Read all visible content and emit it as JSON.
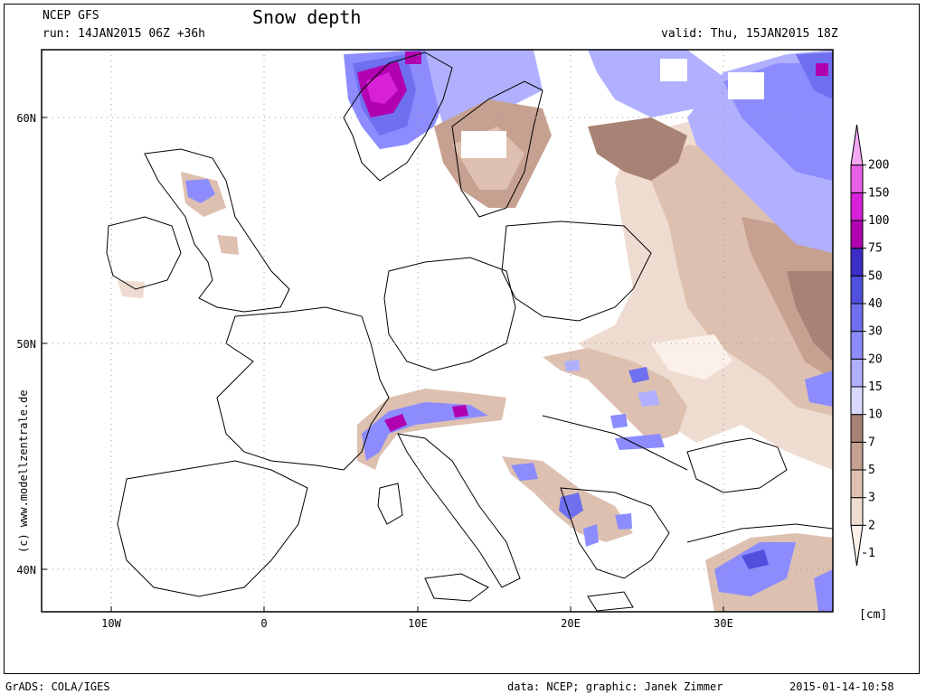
{
  "header": {
    "model": "NCEP GFS",
    "title": "Snow depth",
    "run": "run: 14JAN2015 06Z +36h",
    "valid": "valid: Thu, 15JAN2015 18Z"
  },
  "axes": {
    "lat_labels": [
      "60N",
      "50N",
      "40N"
    ],
    "lon_labels": [
      "10W",
      "0",
      "10E",
      "20E",
      "30E"
    ]
  },
  "colorbar": {
    "levels": [
      "1",
      "2",
      "3",
      "5",
      "7",
      "10",
      "15",
      "20",
      "30",
      "40",
      "50",
      "75",
      "100",
      "150",
      "200"
    ],
    "colors": [
      "#fbf1ea",
      "#efdcd0",
      "#ddc0b0",
      "#c6a090",
      "#a88274",
      "#d8d8ff",
      "#b0b0ff",
      "#8c8cff",
      "#6f6ff0",
      "#5050dc",
      "#3c2cc8",
      "#b000b0",
      "#d820d8",
      "#e860e8",
      "#f4a8f4"
    ],
    "unit": "[cm]"
  },
  "footer": {
    "left": "GrADS: COLA/IGES",
    "center": "data: NCEP; graphic: Janek Zimmer",
    "right": "2015-01-14-10:58"
  },
  "credit": "(c) www.modellzentrale.de"
}
